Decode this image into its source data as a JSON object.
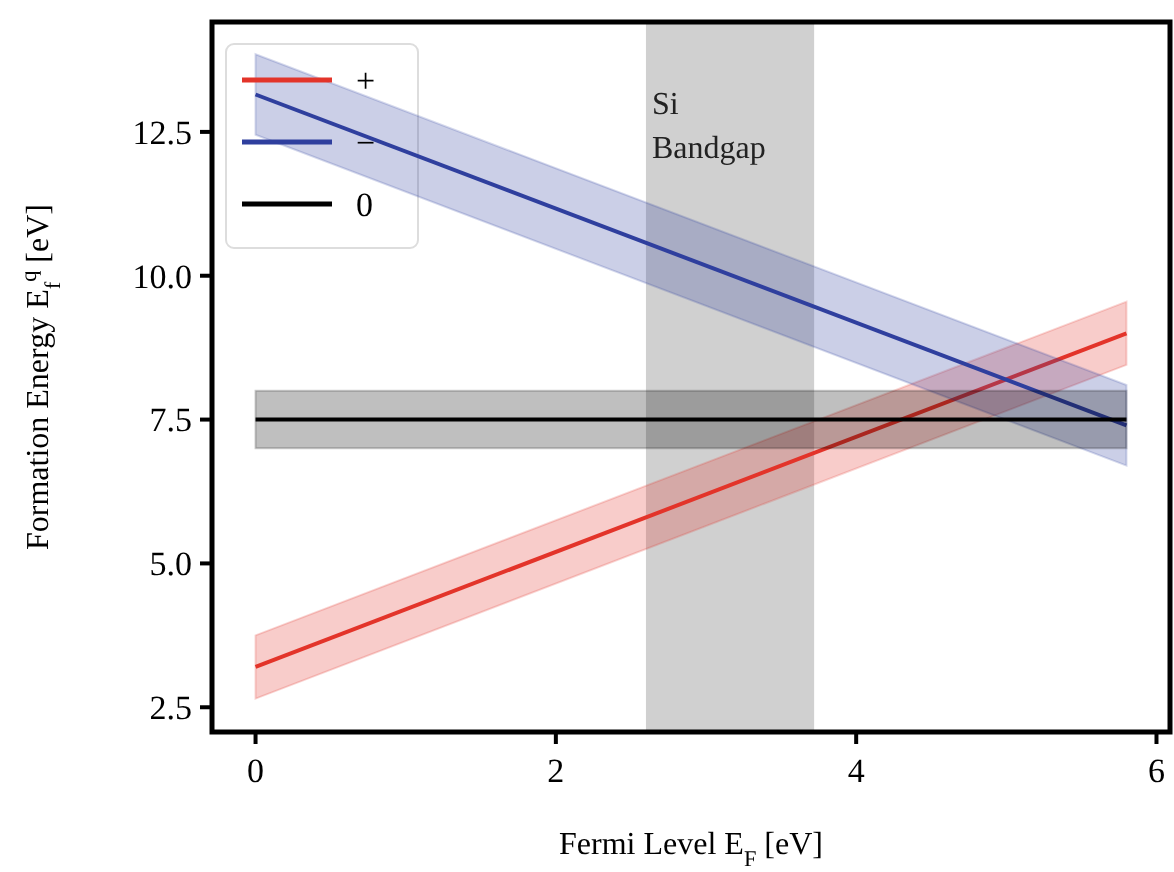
{
  "chart_data": {
    "type": "line",
    "xlabel": "Fermi Level E$_{F}$ [eV]",
    "ylabel": "Formation Energy E$_{f}$$^{q}$ [eV]",
    "x": [
      0,
      5.8
    ],
    "series": [
      {
        "name": "+",
        "color": "#e3342a",
        "values": [
          3.2,
          9.0
        ],
        "lower": [
          2.65,
          8.45
        ],
        "upper": [
          3.75,
          9.55
        ]
      },
      {
        "name": "−",
        "color": "#2f3f9e",
        "values": [
          13.15,
          7.4
        ],
        "lower": [
          12.45,
          6.7
        ],
        "upper": [
          13.85,
          8.1
        ]
      },
      {
        "name": "0",
        "color": "#000000",
        "values": [
          7.5,
          7.5
        ],
        "lower": [
          7.0,
          7.0
        ],
        "upper": [
          8.0,
          8.0
        ]
      }
    ],
    "bands": [
      {
        "axis": "x",
        "from": 2.6,
        "to": 3.72,
        "label": "Si Bandgap",
        "color": "#d0d0d0"
      }
    ],
    "xlim": [
      -0.29,
      6.09
    ],
    "xticks": [
      0,
      2,
      4,
      6
    ],
    "ylim": [
      2.07,
      14.41
    ],
    "yticks": [
      2.5,
      {
        "value": 5,
        "label": "5.0"
      },
      7.5,
      {
        "value": 10,
        "label": "10.0"
      },
      12.5
    ],
    "legend": "top left",
    "line_style": "solid",
    "marker": "none",
    "grid": false
  }
}
